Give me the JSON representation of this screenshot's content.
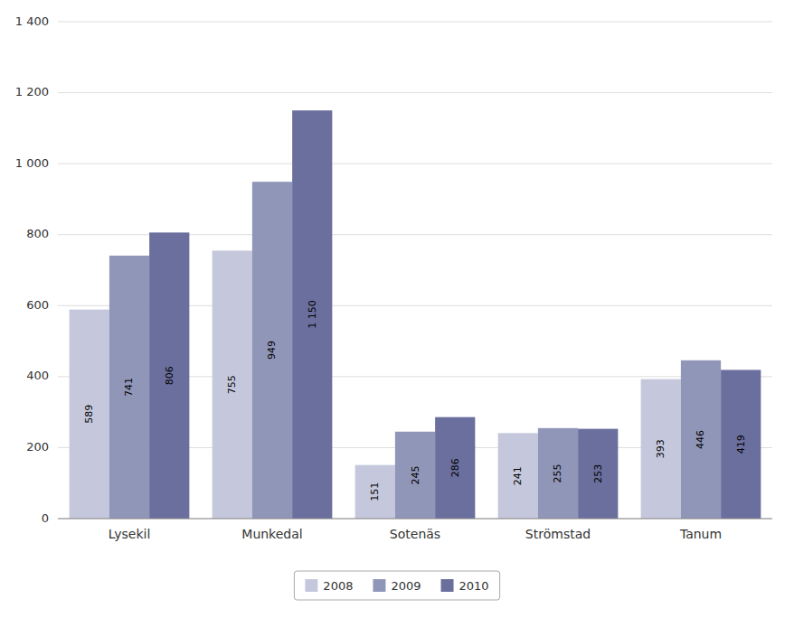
{
  "chart_data": {
    "type": "bar",
    "categories": [
      "Lysekil",
      "Munkedal",
      "Sotenäs",
      "Strömstad",
      "Tanum"
    ],
    "series": [
      {
        "name": "2008",
        "color": "#c5c8dc",
        "values": [
          589,
          755,
          151,
          241,
          393
        ]
      },
      {
        "name": "2009",
        "color": "#9096b8",
        "values": [
          741,
          949,
          245,
          255,
          446
        ]
      },
      {
        "name": "2010",
        "color": "#6b6f9e",
        "values": [
          806,
          1150,
          286,
          253,
          419
        ],
        "value_labels": [
          "806",
          "1 150",
          "286",
          "253",
          "419"
        ]
      }
    ],
    "ylim": [
      0,
      1400
    ],
    "yticks": [
      0,
      200,
      400,
      600,
      800,
      {
        "value": 1000,
        "label": "1 000"
      },
      {
        "value": 1200,
        "label": "1 200"
      },
      {
        "value": 1400,
        "label": "1 400"
      }
    ],
    "grid": true,
    "legend": "bottom",
    "data_labels": true
  }
}
